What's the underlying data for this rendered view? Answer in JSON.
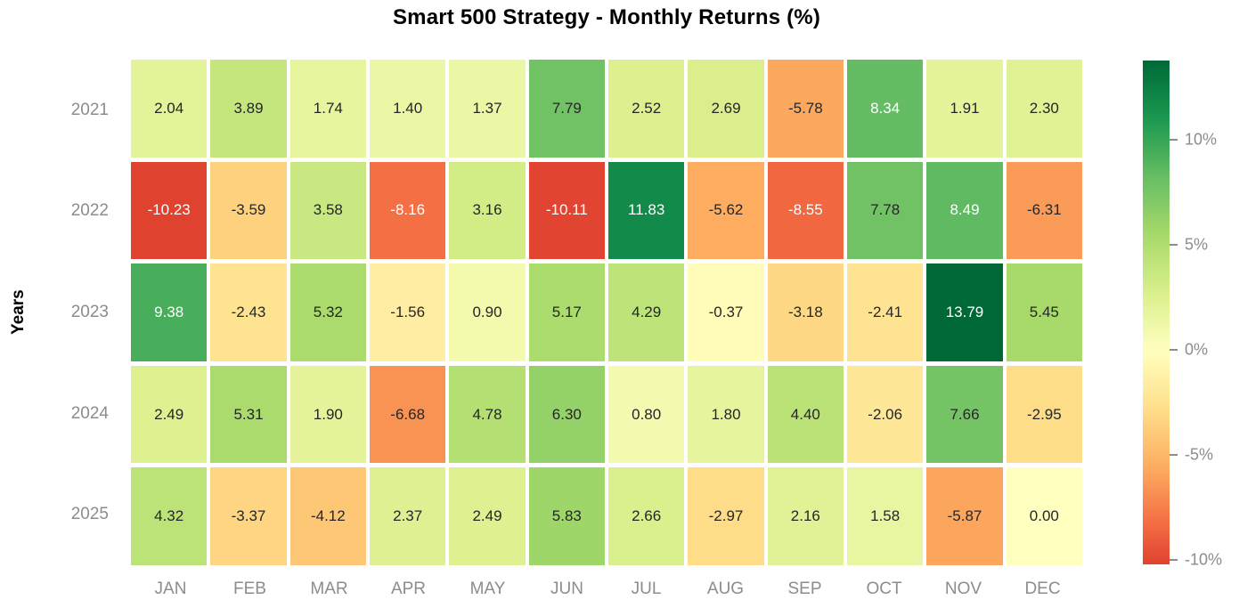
{
  "chart_data": {
    "type": "heatmap",
    "title": "Smart 500 Strategy - Monthly Returns (%)",
    "ylabel": "Years",
    "xlabel": "",
    "categories_x": [
      "JAN",
      "FEB",
      "MAR",
      "APR",
      "MAY",
      "JUN",
      "JUL",
      "AUG",
      "SEP",
      "OCT",
      "NOV",
      "DEC"
    ],
    "categories_y": [
      "2021",
      "2022",
      "2023",
      "2024",
      "2025"
    ],
    "values": [
      [
        2.04,
        3.89,
        1.74,
        1.4,
        1.37,
        7.79,
        2.52,
        2.69,
        -5.78,
        8.34,
        1.91,
        2.3
      ],
      [
        -10.23,
        -3.59,
        3.58,
        -8.16,
        3.16,
        -10.11,
        11.83,
        -5.62,
        -8.55,
        7.78,
        8.49,
        -6.31
      ],
      [
        9.38,
        -2.43,
        5.32,
        -1.56,
        0.9,
        5.17,
        4.29,
        -0.37,
        -3.18,
        -2.41,
        13.79,
        5.45
      ],
      [
        2.49,
        5.31,
        1.9,
        -6.68,
        4.78,
        6.3,
        0.8,
        1.8,
        4.4,
        -2.06,
        7.66,
        -2.95
      ],
      [
        4.32,
        -3.37,
        -4.12,
        2.37,
        2.49,
        5.83,
        2.66,
        -2.97,
        2.16,
        1.58,
        -5.87,
        0.0
      ]
    ],
    "value_format_decimals": 2,
    "colormap": "RdYlGn",
    "center": 0,
    "vmin": -10.23,
    "vmax": 13.79,
    "grid": false,
    "legend_position": "colorbar-right",
    "colorbar_ticks": [
      {
        "label": "10%",
        "value": 10
      },
      {
        "label": "5%",
        "value": 5
      },
      {
        "label": "0%",
        "value": 0
      },
      {
        "label": "-5%",
        "value": -5
      },
      {
        "label": "-10%",
        "value": -10
      }
    ]
  },
  "colors": {
    "background": "#ffffff",
    "title_color": "#000000",
    "axis_title_color": "#000000",
    "tick_label_color": "#8c8c8c",
    "annotation_dark": "#262626",
    "annotation_light": "#ffffff",
    "colormap_stops": [
      "#a50026",
      "#d73027",
      "#f46d43",
      "#fdae61",
      "#fee08b",
      "#ffffbf",
      "#d9ef8b",
      "#a6d96a",
      "#66bd63",
      "#1a9850",
      "#006837"
    ]
  }
}
